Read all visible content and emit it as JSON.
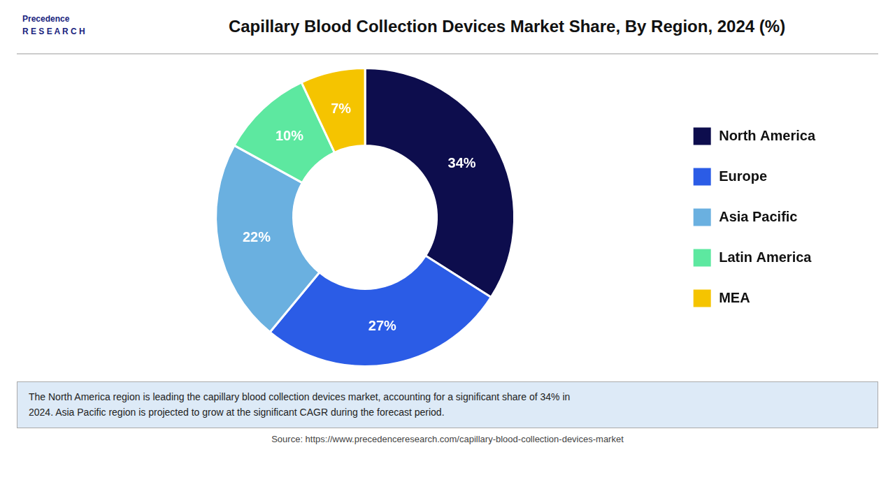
{
  "chart_data": {
    "type": "doughnut",
    "title": "Capillary Blood Collection Devices Market Share, By Region, 2024 (%)",
    "categories": [
      "North America",
      "Europe",
      "Asia Pacific",
      "Latin America",
      "MEA"
    ],
    "values": [
      34,
      27,
      22,
      10,
      7
    ],
    "value_labels": [
      "34%",
      "27%",
      "22%",
      "10%",
      "7%"
    ],
    "colors": [
      "#0d0d4d",
      "#2b5ce6",
      "#6ab0e0",
      "#5de8a0",
      "#f5c400"
    ],
    "data_labels": true,
    "legend": "right",
    "annotations": [
      "Precedence\nR E S E A R C H",
      "The North America region is leading the capillary blood collection devices market, accounting for a significant share of 34% in\n2024. Asia Pacific region is projected to grow at the significant CAGR during the forecast period.",
      "Source: https://www.precedenceresearch.com/capillary-blood-collection-devices-market"
    ]
  }
}
